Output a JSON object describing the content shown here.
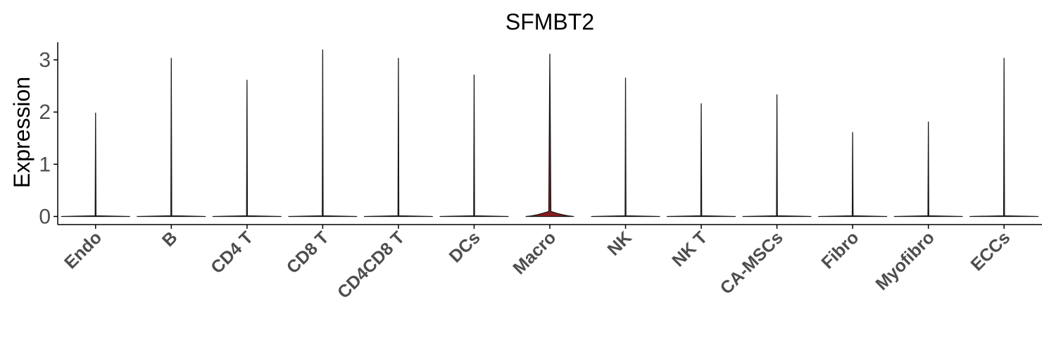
{
  "chart_data": {
    "type": "violin",
    "title": "SFMBT2",
    "xlabel": "",
    "ylabel": "Expression",
    "ylim": [
      -0.15,
      3.35
    ],
    "yticks": [
      0,
      1,
      2,
      3
    ],
    "ytick_labels": [
      "0",
      "1",
      "2",
      "3"
    ],
    "categories": [
      "Endo",
      "B",
      "CD4 T",
      "CD8 T",
      "CD4CD8 T",
      "DCs",
      "Macro",
      "NK",
      "NK T",
      "CA-MSCs",
      "Fibro",
      "Myofibro",
      "ECCs"
    ],
    "max_values": [
      1.98,
      3.03,
      2.61,
      3.19,
      3.03,
      2.71,
      3.11,
      2.65,
      2.16,
      2.33,
      1.61,
      1.81,
      3.03
    ],
    "bulge_heights": [
      0.01,
      0.01,
      0.01,
      0.01,
      0.01,
      0.01,
      0.08,
      0.01,
      0.01,
      0.01,
      0.01,
      0.01,
      0.01
    ],
    "fill_color": "#8b1a1a",
    "outline_color": "#1a1a1a",
    "grid": false,
    "legend": "none"
  }
}
